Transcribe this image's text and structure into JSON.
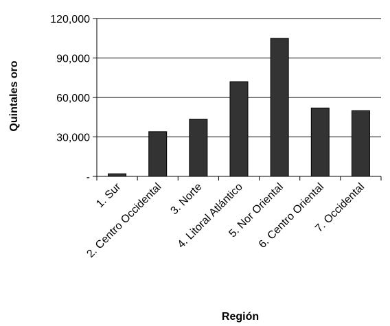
{
  "chart_data": {
    "type": "bar",
    "title": "",
    "xlabel": "Región",
    "ylabel": "Quintales oro",
    "categories": [
      "1. Sur",
      "2. Centro Occidental",
      "3. Norte",
      "4. Litoral Atlántico",
      "5. Nor Oriental",
      "6. Centro Oriental",
      "7. Occidental"
    ],
    "values": [
      2000,
      34000,
      43500,
      72000,
      105000,
      52000,
      50000
    ],
    "ylim": [
      0,
      120000
    ],
    "yticks": [
      0,
      30000,
      60000,
      90000,
      120000
    ],
    "ytick_labels": [
      "-",
      "30,000",
      "60,000",
      "90,000",
      "120,000"
    ],
    "grid": true,
    "legend": "none",
    "bar_color": "#333333",
    "grid_color": "#000000"
  }
}
